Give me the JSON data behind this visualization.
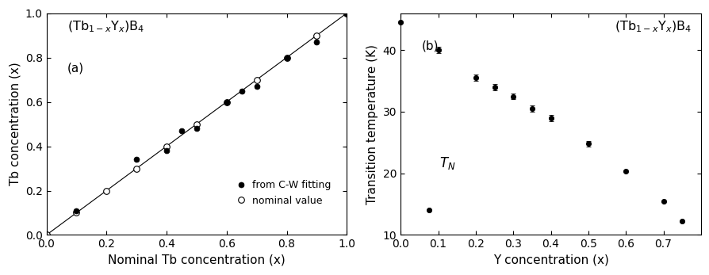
{
  "panel_a": {
    "xlabel": "Nominal Tb concentration (x)",
    "ylabel": "Tb concentration (x)",
    "label_a": "(a)",
    "title_a": "$(\\mathrm{Tb}_{1-x}\\mathrm{Y}_x)\\mathrm{B}_4$",
    "nominal_x": [
      0.0,
      0.1,
      0.2,
      0.3,
      0.4,
      0.5,
      0.6,
      0.7,
      0.8,
      0.9,
      1.0
    ],
    "nominal_y": [
      0.0,
      0.1,
      0.2,
      0.3,
      0.4,
      0.5,
      0.6,
      0.7,
      0.8,
      0.9,
      1.0
    ],
    "cw_x": [
      0.1,
      0.3,
      0.4,
      0.45,
      0.5,
      0.6,
      0.65,
      0.7,
      0.8,
      0.9,
      1.0
    ],
    "cw_y": [
      0.11,
      0.34,
      0.38,
      0.47,
      0.48,
      0.6,
      0.65,
      0.67,
      0.8,
      0.87,
      1.0
    ],
    "legend_filled": "from C-W fitting",
    "legend_open": "nominal value",
    "xlim": [
      0.0,
      1.0
    ],
    "ylim": [
      0.0,
      1.0
    ],
    "xticks": [
      0.0,
      0.2,
      0.4,
      0.6,
      0.8,
      1.0
    ],
    "yticks": [
      0.0,
      0.2,
      0.4,
      0.6,
      0.8,
      1.0
    ]
  },
  "panel_b": {
    "xlabel": "Y concentration (x)",
    "ylabel": "Transition temperature (K)",
    "label_b": "(b)",
    "title_b": "$(\\mathrm{Tb}_{1-x}\\mathrm{Y}_x)\\mathrm{B}_4$",
    "tn_label": "$T_N$",
    "data_x": [
      0.0,
      0.075,
      0.1,
      0.2,
      0.25,
      0.3,
      0.35,
      0.4,
      0.5,
      0.6,
      0.7,
      0.75
    ],
    "data_y": [
      44.5,
      14.0,
      40.0,
      35.5,
      34.0,
      32.5,
      30.5,
      29.0,
      24.8,
      20.4,
      15.5,
      12.3
    ],
    "data_yerr": [
      0.0,
      0.0,
      0.5,
      0.5,
      0.5,
      0.5,
      0.5,
      0.5,
      0.5,
      0.0,
      0.0,
      0.0
    ],
    "xlim": [
      0.0,
      0.8
    ],
    "ylim": [
      10,
      46
    ],
    "xticks": [
      0.0,
      0.1,
      0.2,
      0.3,
      0.4,
      0.5,
      0.6,
      0.7
    ],
    "yticks": [
      10,
      20,
      30,
      40
    ]
  },
  "background_color": "#ffffff"
}
